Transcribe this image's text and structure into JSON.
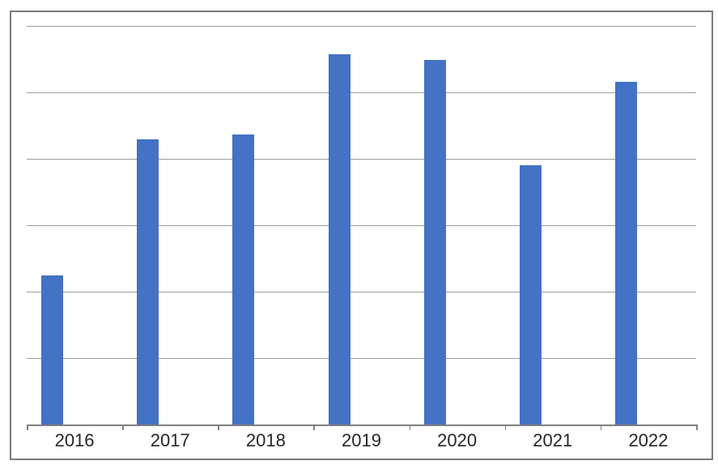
{
  "chart_data": {
    "type": "bar",
    "title": "",
    "xlabel": "",
    "ylabel": "",
    "categories": [
      "2016",
      "2017",
      "2018",
      "2019",
      "2020",
      "2021",
      "2022"
    ],
    "series": [
      {
        "name": "unlabeled-blue-series",
        "values": [
          2.24,
          4.29,
          4.36,
          5.57,
          5.49,
          3.9,
          5.16
        ]
      }
    ],
    "ylim": [
      0,
      6
    ],
    "y_axis_tick_labels_visible": false,
    "y_gridline_interval": 1,
    "grid": "horizontal-only",
    "legend": "none",
    "colors": {
      "bar_fill": "#4472C4",
      "gridline": "#9c9c9c",
      "axis_line": "#7f7f7f",
      "tick_mark": "#7f7f7f",
      "x_label_text": "#262626",
      "chart_border": "#7c7c7c",
      "background": "#ffffff"
    }
  }
}
